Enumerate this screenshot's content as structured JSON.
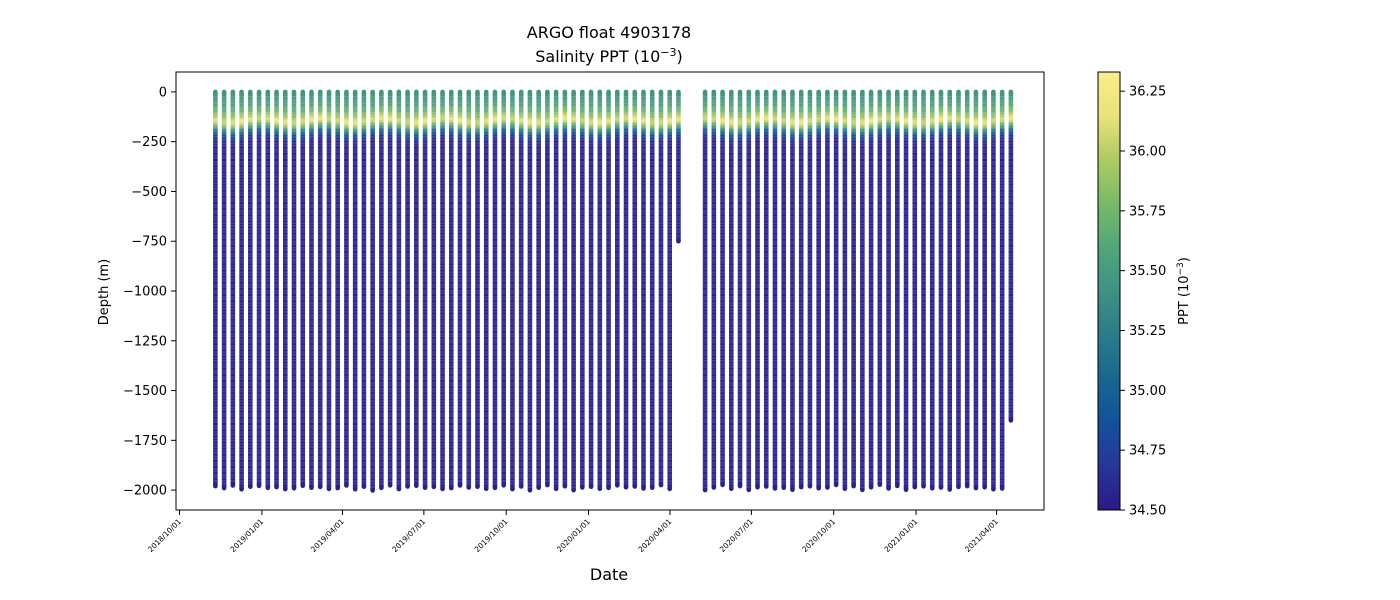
{
  "chart_data": {
    "type": "scatter",
    "title": "ARGO float 4903178",
    "subtitle_prefix": "Salinity PPT (10",
    "subtitle_exp": "−3",
    "subtitle_suffix": ")",
    "xlabel": "Date",
    "ylabel": "Depth (m)",
    "x_tick_labels": [
      "2018/10/01",
      "2019/01/01",
      "2019/04/01",
      "2019/07/01",
      "2019/10/01",
      "2020/01/01",
      "2020/04/01",
      "2020/07/01",
      "2020/10/01",
      "2021/01/01",
      "2021/04/01"
    ],
    "x_tick_days": [
      0,
      92,
      182,
      273,
      365,
      457,
      548,
      639,
      731,
      823,
      913
    ],
    "xlim_days": [
      -4,
      966
    ],
    "y_ticks": [
      0,
      -250,
      -500,
      -750,
      -1000,
      -1250,
      -1500,
      -1750,
      -2000
    ],
    "y_tick_labels": [
      "0",
      "−250",
      "−500",
      "−750",
      "−1000",
      "−1250",
      "−1500",
      "−1750",
      "−2000"
    ],
    "ylim": [
      -2100,
      100
    ],
    "colorbar": {
      "label_prefix": "PPT (10",
      "label_exp": "−3",
      "label_suffix": ")",
      "range": [
        34.5,
        36.33
      ],
      "ticks": [
        34.5,
        34.75,
        35.0,
        35.25,
        35.5,
        35.75,
        36.0,
        36.25
      ],
      "tick_labels": [
        "34.50",
        "34.75",
        "35.00",
        "35.25",
        "35.50",
        "35.75",
        "36.00",
        "36.25"
      ],
      "colormap": "haline",
      "stops": [
        "#2a1a8a",
        "#283599",
        "#13519a",
        "#17678f",
        "#2b7c89",
        "#3f9184",
        "#52a67a",
        "#79ba69",
        "#aecb62",
        "#e8e37a",
        "#fbed8d"
      ]
    },
    "profiles": {
      "count": 90,
      "first_day": 40,
      "last_day": 929,
      "gap_after_index": 53,
      "gap_days": 20,
      "typical_max_depth": -1980,
      "partial_profiles": [
        {
          "index": 53,
          "max_depth": -750
        },
        {
          "index": 89,
          "max_depth": -1650
        }
      ],
      "surface_salinity": 35.45,
      "halocline_max_salinity": 36.2,
      "halocline_depth": -140,
      "deep_salinity": 34.55
    }
  }
}
